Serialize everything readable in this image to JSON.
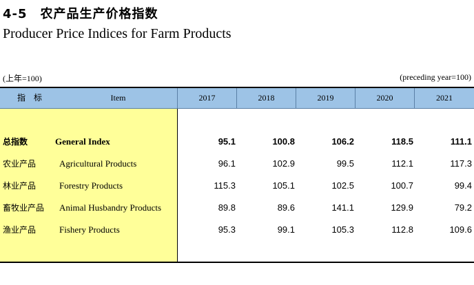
{
  "title_cn": "4-5　农产品生产价格指数",
  "title_en": "Producer Price Indices for Farm Products",
  "unit_cn": "(上年=100)",
  "unit_en": "(preceding year=100)",
  "header": {
    "indicator_cn": "指　标",
    "item": "Item",
    "years": [
      "2017",
      "2018",
      "2019",
      "2020",
      "2021"
    ]
  },
  "rows": [
    {
      "cn": "总指数",
      "en": "General Index",
      "values": [
        "95.1",
        "100.8",
        "106.2",
        "118.5",
        "111.1"
      ]
    },
    {
      "cn": "农业产品",
      "en": "Agricultural Products",
      "values": [
        "96.1",
        "102.9",
        "99.5",
        "112.1",
        "117.3"
      ]
    },
    {
      "cn": "林业产品",
      "en": "Forestry Products",
      "values": [
        "115.3",
        "105.1",
        "102.5",
        "100.7",
        "99.4"
      ]
    },
    {
      "cn": "畜牧业产品",
      "en": "Animal Husbandry Products",
      "values": [
        "89.8",
        "89.6",
        "141.1",
        "129.9",
        "79.2"
      ]
    },
    {
      "cn": "渔业产品",
      "en": "Fishery Products",
      "values": [
        "95.3",
        "99.1",
        "105.3",
        "112.8",
        "109.6"
      ]
    }
  ],
  "colors": {
    "header_bg": "#9dc3e6",
    "stub_bg": "#ffff99"
  }
}
